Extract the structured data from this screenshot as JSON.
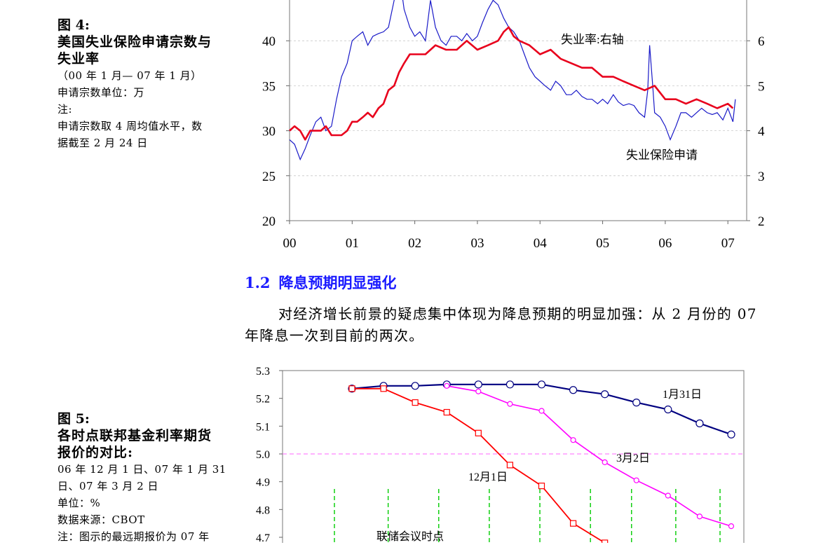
{
  "figure4": {
    "label": "图 4:",
    "title_lines": [
      "美国失业保险申请宗数与",
      "失业率"
    ],
    "period": "（00 年 1 月— 07 年 1 月）",
    "unit": "申请宗数单位：万",
    "note_label": "注:",
    "note_lines": [
      "申请宗数取 4 周均值水平，数",
      "据截至 2 月 24 日"
    ]
  },
  "figure5": {
    "label": "图 5:",
    "title_lines": [
      "各时点联邦基金利率期货",
      "报价的对比:"
    ],
    "date_lines": [
      "06 年 12 月 1 日、07 年 1 月 31",
      "日、07 年 3 月 2 日"
    ],
    "unit": "单位：%",
    "source": "数据来源：CBOT",
    "note_partial": "注：图示的最远期报价为 07 年"
  },
  "section": {
    "number": "1.2",
    "title": "降息预期明显强化"
  },
  "paragraph": "对经济增长前景的疑虑集中体现为降息预期的明显加强：从 2 月份的 07 年降息一次到目前的两次。",
  "colors": {
    "heading": "#1a1aff",
    "claims_line": "#1a1ac8",
    "unemployment_line": "#e8001c",
    "jan31_line": "#000080",
    "mar2_line": "#ff00ff",
    "dec1_line": "#ff0000",
    "fomc_marker": "#00cc00",
    "ref_line": "#ff66ff"
  },
  "chart_data": [
    {
      "type": "line",
      "x_tick_labels": [
        "00",
        "01",
        "02",
        "03",
        "04",
        "05",
        "06",
        "07"
      ],
      "y_left_ticks": [
        "20",
        "25",
        "30",
        "35",
        "40"
      ],
      "y_right_ticks": [
        "2",
        "3",
        "4",
        "5",
        "6"
      ],
      "ylim_left": [
        20,
        45
      ],
      "ylim_right": [
        2,
        7
      ],
      "annotations": [
        "失业率:右轴",
        "失业保险申请"
      ],
      "series": [
        {
          "name": "失业保险申请",
          "axis": "left",
          "x": [
            2000.0,
            2000.08,
            2000.17,
            2000.25,
            2000.33,
            2000.42,
            2000.5,
            2000.58,
            2000.67,
            2000.75,
            2000.83,
            2000.92,
            2001.0,
            2001.08,
            2001.17,
            2001.25,
            2001.33,
            2001.42,
            2001.5,
            2001.58,
            2001.67,
            2001.72,
            2001.78,
            2001.83,
            2001.92,
            2002.0,
            2002.08,
            2002.17,
            2002.25,
            2002.33,
            2002.42,
            2002.5,
            2002.58,
            2002.67,
            2002.75,
            2002.83,
            2002.92,
            2003.0,
            2003.08,
            2003.17,
            2003.25,
            2003.33,
            2003.42,
            2003.5,
            2003.58,
            2003.67,
            2003.75,
            2003.83,
            2003.92,
            2004.0,
            2004.08,
            2004.17,
            2004.25,
            2004.33,
            2004.42,
            2004.5,
            2004.58,
            2004.67,
            2004.75,
            2004.83,
            2004.92,
            2005.0,
            2005.08,
            2005.17,
            2005.25,
            2005.33,
            2005.42,
            2005.5,
            2005.58,
            2005.67,
            2005.72,
            2005.75,
            2005.8,
            2005.83,
            2005.92,
            2006.0,
            2006.08,
            2006.17,
            2006.25,
            2006.33,
            2006.42,
            2006.5,
            2006.58,
            2006.67,
            2006.75,
            2006.83,
            2006.92,
            2007.0,
            2007.08,
            2007.12
          ],
          "values": [
            29.0,
            28.5,
            26.8,
            28.0,
            29.5,
            31.0,
            31.5,
            30.0,
            30.5,
            33.5,
            36.0,
            37.5,
            40.0,
            40.5,
            41.0,
            39.5,
            40.5,
            40.8,
            41.0,
            41.5,
            44.5,
            45.5,
            46.0,
            43.5,
            41.5,
            40.5,
            41.0,
            40.0,
            44.5,
            41.5,
            40.0,
            39.5,
            40.5,
            40.5,
            40.0,
            40.8,
            40.0,
            40.5,
            42.0,
            43.5,
            44.5,
            44.0,
            42.5,
            41.5,
            41.0,
            40.0,
            38.5,
            37.0,
            36.0,
            35.5,
            35.0,
            34.5,
            35.5,
            35.0,
            34.0,
            34.0,
            34.5,
            33.8,
            33.5,
            33.5,
            33.0,
            33.5,
            33.0,
            34.0,
            33.2,
            32.8,
            33.0,
            32.8,
            32.0,
            31.5,
            34.5,
            39.5,
            35.0,
            32.0,
            31.5,
            30.5,
            29.0,
            30.5,
            32.0,
            32.0,
            31.5,
            32.0,
            32.5,
            32.0,
            31.8,
            32.0,
            31.2,
            32.5,
            31.0,
            33.5
          ]
        },
        {
          "name": "失业率",
          "axis": "right",
          "x": [
            2000.0,
            2000.08,
            2000.17,
            2000.25,
            2000.33,
            2000.42,
            2000.5,
            2000.58,
            2000.67,
            2000.75,
            2000.83,
            2000.92,
            2001.0,
            2001.08,
            2001.17,
            2001.25,
            2001.33,
            2001.42,
            2001.5,
            2001.58,
            2001.67,
            2001.75,
            2001.83,
            2001.92,
            2002.0,
            2002.17,
            2002.33,
            2002.5,
            2002.67,
            2002.83,
            2003.0,
            2003.17,
            2003.33,
            2003.42,
            2003.5,
            2003.58,
            2003.67,
            2003.83,
            2004.0,
            2004.17,
            2004.33,
            2004.5,
            2004.67,
            2004.83,
            2005.0,
            2005.17,
            2005.33,
            2005.5,
            2005.67,
            2005.83,
            2006.0,
            2006.17,
            2006.33,
            2006.5,
            2006.67,
            2006.83,
            2007.0,
            2007.08
          ],
          "values": [
            4.0,
            4.1,
            4.0,
            3.8,
            4.0,
            4.0,
            4.0,
            4.1,
            3.9,
            3.9,
            3.9,
            4.0,
            4.2,
            4.2,
            4.3,
            4.4,
            4.3,
            4.5,
            4.6,
            4.9,
            5.0,
            5.3,
            5.5,
            5.7,
            5.7,
            5.7,
            5.9,
            5.8,
            5.8,
            6.0,
            5.8,
            5.9,
            6.0,
            6.2,
            6.3,
            6.1,
            6.0,
            5.9,
            5.7,
            5.8,
            5.6,
            5.5,
            5.4,
            5.4,
            5.2,
            5.2,
            5.1,
            5.0,
            4.9,
            5.0,
            4.7,
            4.7,
            4.6,
            4.7,
            4.6,
            4.5,
            4.6,
            4.5
          ]
        }
      ]
    },
    {
      "type": "line",
      "y_ticks": [
        "5.3",
        "5.2",
        "5.1",
        "5.0",
        "4.9",
        "4.8",
        "4.7"
      ],
      "ylim": [
        4.7,
        5.3
      ],
      "reference_line": 5.0,
      "annotations": [
        "联储会议时点"
      ],
      "fomc_marker_positions": [
        0,
        1.7,
        3.3,
        4.9,
        6.5,
        8.1,
        9.4,
        10.8,
        12.2
      ],
      "series": [
        {
          "name": "1月31日",
          "marker": "circle",
          "values": [
            5.235,
            5.245,
            5.245,
            5.25,
            5.25,
            5.25,
            5.25,
            5.23,
            5.215,
            5.185,
            5.16,
            5.11,
            5.07
          ]
        },
        {
          "name": "3月2日",
          "marker": "circle",
          "start_index": 3,
          "values": [
            5.245,
            5.225,
            5.18,
            5.155,
            5.05,
            4.97,
            4.905,
            4.85,
            4.775,
            4.74
          ]
        },
        {
          "name": "12月1日",
          "marker": "square",
          "values": [
            5.235,
            5.235,
            5.185,
            5.15,
            5.075,
            4.96,
            4.885,
            4.75,
            4.68
          ]
        }
      ]
    }
  ]
}
